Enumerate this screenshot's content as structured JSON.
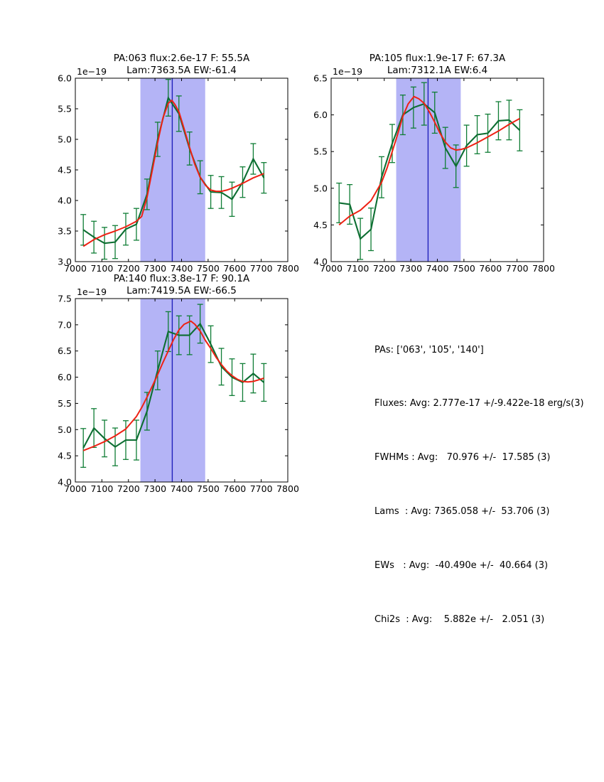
{
  "page": {
    "background": "#ffffff"
  },
  "style": {
    "data_line_color": "#0d6e32",
    "error_bar_color": "#0f7d35",
    "fit_line_color": "#ee2114",
    "shade_color": "#b4b4f6",
    "vline_color": "#2121bb",
    "axis_color": "#000000",
    "text_color": "#000000"
  },
  "chart_data": [
    {
      "type": "line",
      "id": "pa063",
      "title_line1": "PA:063 flux:2.6e-17 F: 55.5A",
      "title_line2": "Lam:7363.5A EW:-61.4",
      "offset_label": "1e−19",
      "xlim": [
        7000,
        7800
      ],
      "ylim": [
        3.0,
        6.0
      ],
      "xticks": [
        7000,
        7100,
        7200,
        7300,
        7400,
        7500,
        7600,
        7700,
        7800
      ],
      "yticks": [
        3.0,
        3.5,
        4.0,
        4.5,
        5.0,
        5.5,
        6.0
      ],
      "grid": false,
      "shade_region": [
        7245,
        7489
      ],
      "vline_x": 7365,
      "series": [
        {
          "name": "data",
          "x": [
            7030,
            7070,
            7110,
            7150,
            7190,
            7230,
            7270,
            7310,
            7350,
            7390,
            7430,
            7470,
            7510,
            7550,
            7590,
            7630,
            7670,
            7710
          ],
          "y": [
            3.52,
            3.4,
            3.3,
            3.32,
            3.53,
            3.61,
            4.1,
            5.0,
            5.68,
            5.42,
            4.85,
            4.38,
            4.14,
            4.13,
            4.02,
            4.3,
            4.68,
            4.37
          ],
          "yerr": [
            0.25,
            0.26,
            0.26,
            0.27,
            0.26,
            0.26,
            0.25,
            0.28,
            0.3,
            0.29,
            0.27,
            0.27,
            0.27,
            0.26,
            0.28,
            0.25,
            0.25,
            0.25
          ]
        },
        {
          "name": "fit",
          "x": [
            7030,
            7070,
            7110,
            7150,
            7190,
            7230,
            7250,
            7270,
            7290,
            7310,
            7330,
            7350,
            7363,
            7375,
            7390,
            7410,
            7430,
            7450,
            7470,
            7490,
            7510,
            7530,
            7550,
            7570,
            7590,
            7630,
            7670,
            7710
          ],
          "y": [
            3.25,
            3.36,
            3.44,
            3.5,
            3.57,
            3.66,
            3.74,
            4.05,
            4.5,
            4.95,
            5.35,
            5.59,
            5.64,
            5.57,
            5.45,
            5.17,
            4.87,
            4.59,
            4.38,
            4.25,
            4.17,
            4.15,
            4.15,
            4.17,
            4.2,
            4.28,
            4.37,
            4.44
          ]
        }
      ]
    },
    {
      "type": "line",
      "id": "pa105",
      "title_line1": "PA:105 flux:1.9e-17 F: 67.3A",
      "title_line2": "Lam:7312.1A EW:6.4",
      "offset_label": "1e−19",
      "xlim": [
        7000,
        7800
      ],
      "ylim": [
        4.0,
        6.5
      ],
      "xticks": [
        7000,
        7100,
        7200,
        7300,
        7400,
        7500,
        7600,
        7700,
        7800
      ],
      "yticks": [
        4.0,
        4.5,
        5.0,
        5.5,
        6.0,
        6.5
      ],
      "grid": false,
      "shade_region": [
        7245,
        7488
      ],
      "vline_x": 7365,
      "series": [
        {
          "name": "data",
          "x": [
            7030,
            7070,
            7110,
            7150,
            7190,
            7230,
            7270,
            7310,
            7350,
            7390,
            7430,
            7470,
            7510,
            7550,
            7590,
            7630,
            7670,
            7710
          ],
          "y": [
            4.8,
            4.78,
            4.31,
            4.44,
            5.15,
            5.61,
            6.0,
            6.1,
            6.15,
            6.03,
            5.55,
            5.3,
            5.58,
            5.73,
            5.75,
            5.92,
            5.93,
            5.79
          ],
          "yerr": [
            0.27,
            0.27,
            0.28,
            0.29,
            0.28,
            0.26,
            0.27,
            0.28,
            0.29,
            0.28,
            0.28,
            0.29,
            0.28,
            0.26,
            0.26,
            0.26,
            0.27,
            0.28
          ]
        },
        {
          "name": "fit",
          "x": [
            7030,
            7070,
            7110,
            7150,
            7190,
            7210,
            7230,
            7250,
            7270,
            7290,
            7312,
            7330,
            7350,
            7370,
            7390,
            7410,
            7430,
            7450,
            7470,
            7490,
            7510,
            7550,
            7590,
            7630,
            7670,
            7710
          ],
          "y": [
            4.5,
            4.62,
            4.7,
            4.83,
            5.08,
            5.27,
            5.5,
            5.73,
            5.98,
            6.15,
            6.25,
            6.22,
            6.16,
            6.04,
            5.9,
            5.75,
            5.63,
            5.55,
            5.52,
            5.53,
            5.55,
            5.62,
            5.7,
            5.78,
            5.87,
            5.95
          ]
        }
      ]
    },
    {
      "type": "line",
      "id": "pa140",
      "title_line1": "PA:140 flux:3.8e-17 F: 90.1A",
      "title_line2": "Lam:7419.5A EW:-66.5",
      "offset_label": "1e−19",
      "xlim": [
        7000,
        7800
      ],
      "ylim": [
        4.0,
        7.5
      ],
      "xticks": [
        7000,
        7100,
        7200,
        7300,
        7400,
        7500,
        7600,
        7700,
        7800
      ],
      "yticks": [
        4.0,
        4.5,
        5.0,
        5.5,
        6.0,
        6.5,
        7.0,
        7.5
      ],
      "grid": false,
      "shade_region": [
        7245,
        7489
      ],
      "vline_x": 7365,
      "series": [
        {
          "name": "data",
          "x": [
            7030,
            7070,
            7110,
            7150,
            7190,
            7230,
            7270,
            7310,
            7350,
            7390,
            7430,
            7470,
            7510,
            7550,
            7590,
            7630,
            7670,
            7710
          ],
          "y": [
            4.65,
            5.03,
            4.83,
            4.67,
            4.8,
            4.8,
            5.35,
            6.13,
            6.87,
            6.8,
            6.8,
            7.02,
            6.63,
            6.2,
            6.0,
            5.9,
            6.07,
            5.9
          ],
          "yerr": [
            0.37,
            0.37,
            0.35,
            0.36,
            0.37,
            0.38,
            0.36,
            0.37,
            0.38,
            0.37,
            0.37,
            0.37,
            0.35,
            0.35,
            0.35,
            0.36,
            0.37,
            0.36
          ]
        },
        {
          "name": "fit",
          "x": [
            7030,
            7070,
            7110,
            7150,
            7190,
            7230,
            7250,
            7270,
            7290,
            7310,
            7330,
            7350,
            7370,
            7390,
            7410,
            7435,
            7450,
            7470,
            7490,
            7510,
            7530,
            7550,
            7570,
            7590,
            7610,
            7630,
            7650,
            7670,
            7690,
            7710
          ],
          "y": [
            4.6,
            4.68,
            4.77,
            4.88,
            5.01,
            5.25,
            5.42,
            5.62,
            5.83,
            6.05,
            6.28,
            6.5,
            6.72,
            6.9,
            7.01,
            7.07,
            7.01,
            6.88,
            6.7,
            6.55,
            6.38,
            6.24,
            6.12,
            6.03,
            5.96,
            5.92,
            5.91,
            5.92,
            5.95,
            5.98
          ]
        }
      ]
    }
  ],
  "stats_panel": {
    "lines": [
      "PAs: ['063', '105', '140']",
      "Fluxes: Avg: 2.777e-17 +/-9.422e-18 erg/s(3)",
      "FWHMs : Avg:   70.976 +/-  17.585 (3)",
      "Lams  : Avg: 7365.058 +/-  53.706 (3)",
      "EWs   : Avg:  -40.490e +/-  40.664 (3)",
      "Chi2s  : Avg:    5.882e +/-   2.051 (3)"
    ]
  }
}
